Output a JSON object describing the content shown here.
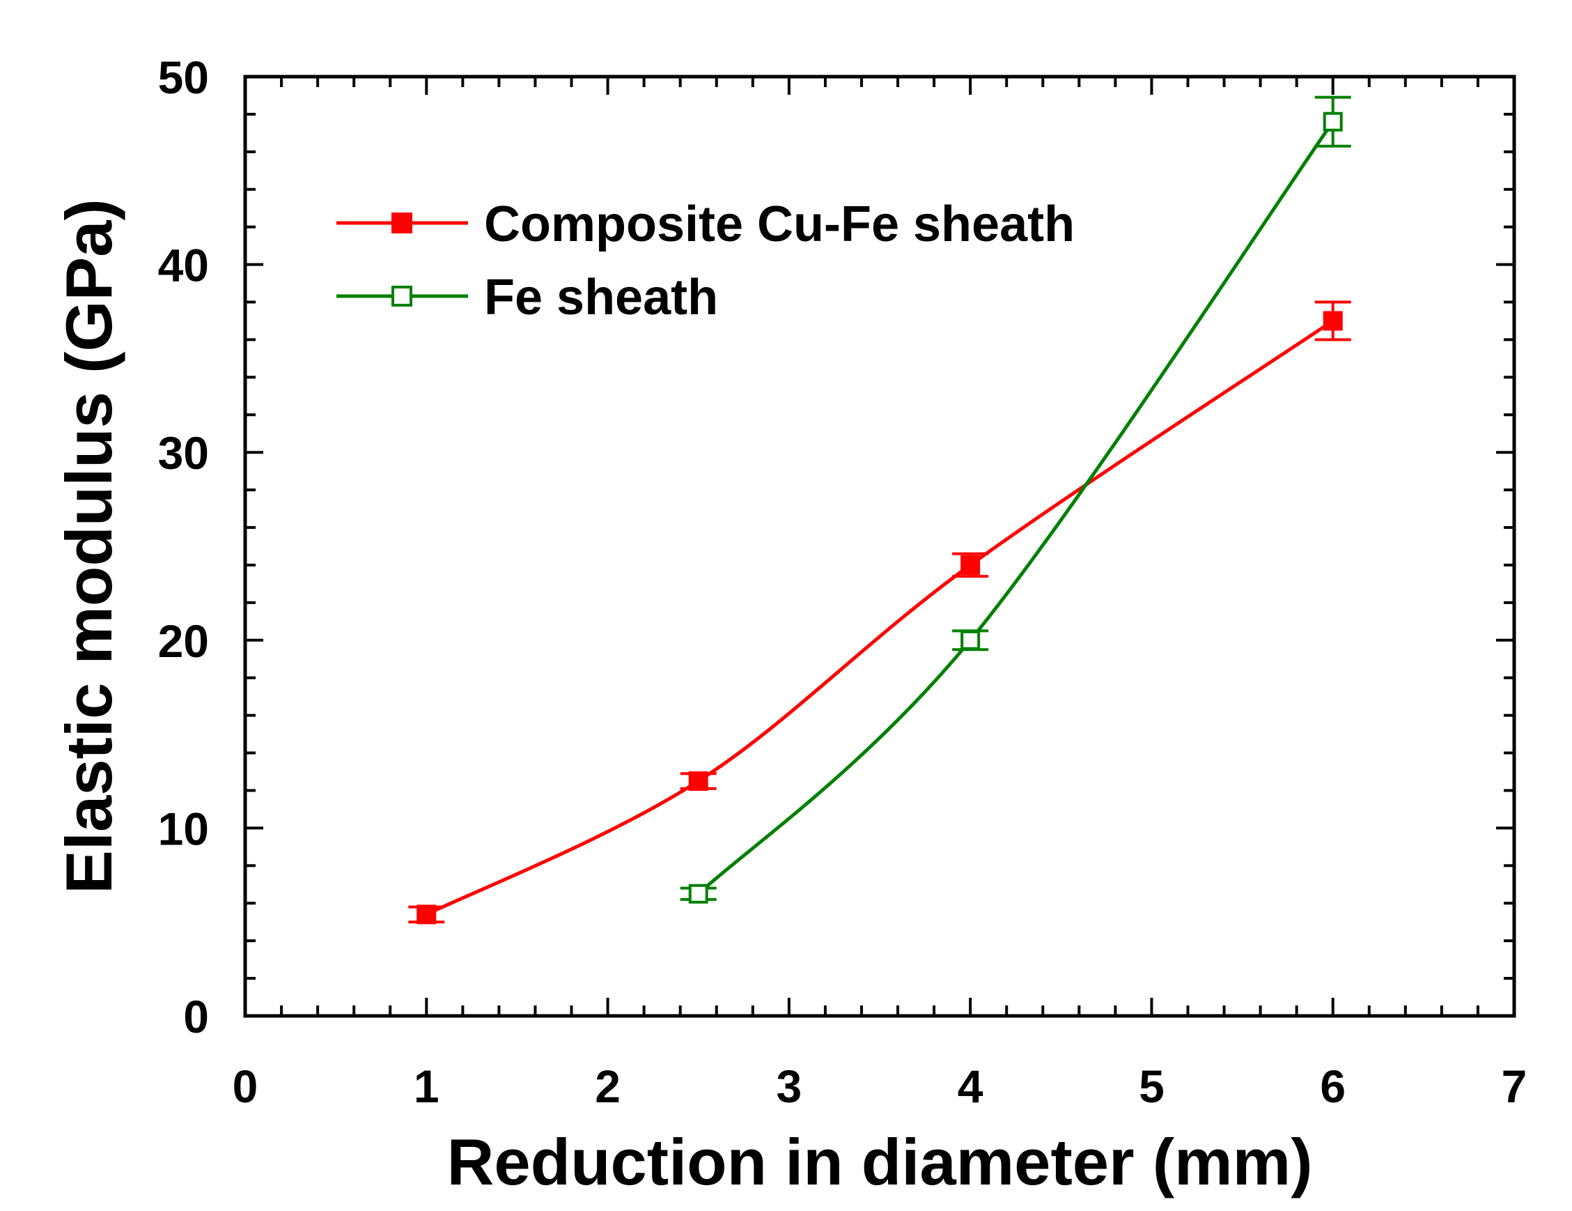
{
  "chart_data": {
    "type": "line",
    "title": "",
    "xlabel": "Reduction in diameter (mm)",
    "ylabel": "Elastic modulus (GPa)",
    "xlim": [
      0,
      7
    ],
    "ylim": [
      0,
      50
    ],
    "x_ticks": [
      "0",
      "1",
      "2",
      "3",
      "4",
      "5",
      "6",
      "7"
    ],
    "y_ticks": [
      "0",
      "10",
      "20",
      "30",
      "40",
      "50"
    ],
    "grid": false,
    "legend_position": "top-left",
    "series": [
      {
        "name": "Composite Cu-Fe sheath",
        "color": "#ff0000",
        "marker": "filled-square",
        "x": [
          1,
          2.5,
          4,
          6
        ],
        "y": [
          5.4,
          12.5,
          24.0,
          37.0
        ],
        "error": [
          0.4,
          0.4,
          0.6,
          1.0
        ]
      },
      {
        "name": "Fe sheath",
        "color": "#008000",
        "marker": "open-square",
        "x": [
          2.5,
          4,
          6
        ],
        "y": [
          6.5,
          20.0,
          47.6
        ],
        "error": [
          0.3,
          0.5,
          1.3
        ]
      }
    ]
  }
}
